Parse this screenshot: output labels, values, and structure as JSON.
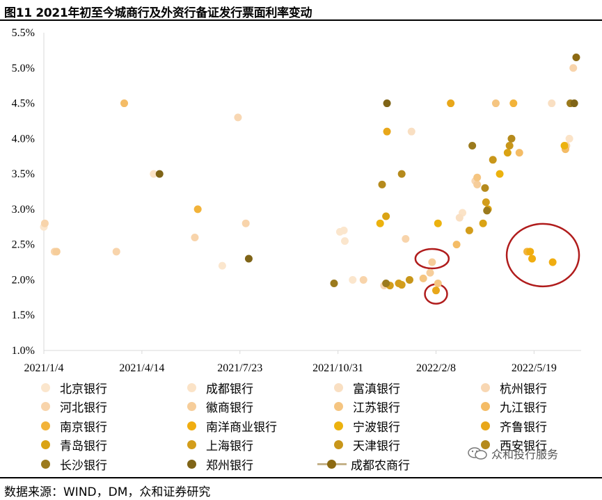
{
  "title": "图11 2021年初至今城商行及外资行备证发行票面利率变动",
  "source": "数据来源：WIND，DM，众和证券研究",
  "watermark": "众和投行服务",
  "chart_data": {
    "type": "scatter",
    "x_ticks": [
      "2021/1/4",
      "2021/4/14",
      "2021/7/23",
      "2021/10/31",
      "2022/2/8",
      "2022/5/19"
    ],
    "y_ticks": [
      "1.0%",
      "1.5%",
      "2.0%",
      "2.5%",
      "3.0%",
      "3.5%",
      "4.0%",
      "4.5%",
      "5.0%",
      "5.5%"
    ],
    "ylim": [
      1.0,
      5.5
    ],
    "xlim": [
      "2021/1/4",
      "2022/7/6"
    ],
    "legend_position": "bottom",
    "series": [
      {
        "name": "北京银行",
        "color": "#fbe6cd",
        "points": [
          [
            "2021/1/4",
            2.75
          ],
          [
            "2021/7/5",
            2.2
          ],
          [
            "2021/11/2",
            2.68
          ],
          [
            "2021/11/6",
            2.7
          ],
          [
            "2021/11/7",
            2.55
          ],
          [
            "2021/11/15",
            2.0
          ]
        ]
      },
      {
        "name": "成都银行",
        "color": "#fbe3c7",
        "points": [
          [
            "2021/4/26",
            3.5
          ],
          [
            "2022/3/7",
            2.95
          ],
          [
            "2022/6/24",
            4.0
          ]
        ]
      },
      {
        "name": "富滇银行",
        "color": "#f9dfc2",
        "points": [
          [
            "2022/1/14",
            4.1
          ],
          [
            "2022/3/4",
            2.88
          ],
          [
            "2022/6/6",
            4.5
          ]
        ]
      },
      {
        "name": "杭州银行",
        "color": "#f8d7b3",
        "points": [
          [
            "2021/7/21",
            4.3
          ],
          [
            "2021/12/17",
            1.92
          ],
          [
            "2022/3/20",
            3.4
          ],
          [
            "2022/6/21",
            3.9
          ]
        ]
      },
      {
        "name": "河北银行",
        "color": "#f8d4ab",
        "points": [
          [
            "2021/1/5",
            2.8
          ],
          [
            "2021/1/15",
            2.4
          ],
          [
            "2021/3/19",
            2.4
          ],
          [
            "2021/6/7",
            2.6
          ],
          [
            "2021/7/29",
            2.8
          ],
          [
            "2021/11/26",
            2.0
          ],
          [
            "2022/1/8",
            2.58
          ],
          [
            "2022/6/28",
            5.0
          ]
        ]
      },
      {
        "name": "徽商银行",
        "color": "#f6cd9a",
        "points": [
          [
            "2021/1/17",
            2.4
          ],
          [
            "2022/2/2",
            2.1
          ],
          [
            "2022/2/4",
            2.25
          ],
          [
            "2022/3/22",
            3.35
          ]
        ]
      },
      {
        "name": "江苏银行",
        "color": "#f5c581",
        "points": [
          [
            "2022/1/26",
            2.02
          ],
          [
            "2022/2/10",
            1.95
          ],
          [
            "2022/3/22",
            3.45
          ],
          [
            "2022/4/10",
            4.5
          ]
        ]
      },
      {
        "name": "九江银行",
        "color": "#f4bc66",
        "points": [
          [
            "2021/3/27",
            4.5
          ],
          [
            "2022/3/1",
            2.5
          ],
          [
            "2022/5/4",
            3.8
          ],
          [
            "2022/6/20",
            3.85
          ]
        ]
      },
      {
        "name": "南京银行",
        "color": "#f2b33a",
        "points": [
          [
            "2021/6/10",
            3.0
          ],
          [
            "2022/4/28",
            4.5
          ],
          [
            "2022/5/12",
            2.4
          ]
        ]
      },
      {
        "name": "南洋商业银行",
        "color": "#f0ad10",
        "points": [
          [
            "2022/5/15",
            2.4
          ],
          [
            "2022/5/17",
            2.3
          ],
          [
            "2022/6/7",
            2.25
          ]
        ]
      },
      {
        "name": "宁波银行",
        "color": "#ecb20e",
        "points": [
          [
            "2021/12/13",
            2.8
          ],
          [
            "2022/2/10",
            2.8
          ],
          [
            "2022/4/14",
            3.5
          ],
          [
            "2022/6/19",
            3.9
          ]
        ]
      },
      {
        "name": "齐鲁银行",
        "color": "#e8a71a",
        "points": [
          [
            "2021/12/20",
            4.1
          ],
          [
            "2022/2/8",
            1.85
          ],
          [
            "2022/2/23",
            4.5
          ]
        ]
      },
      {
        "name": "青岛银行",
        "color": "#daa314",
        "points": [
          [
            "2021/12/19",
            2.9
          ],
          [
            "2022/3/28",
            2.8
          ],
          [
            "2022/4/2",
            3.0
          ],
          [
            "2022/4/22",
            3.8
          ]
        ]
      },
      {
        "name": "上海银行",
        "color": "#d39d1b",
        "points": [
          [
            "2021/12/23",
            1.92
          ],
          [
            "2022/1/1",
            1.95
          ],
          [
            "2022/1/4",
            1.93
          ],
          [
            "2022/3/14",
            2.7
          ],
          [
            "2022/3/31",
            3.1
          ]
        ]
      },
      {
        "name": "天津银行",
        "color": "#c8961a",
        "points": [
          [
            "2022/1/12",
            2.0
          ],
          [
            "2022/4/7",
            3.7
          ],
          [
            "2022/4/24",
            3.9
          ]
        ]
      },
      {
        "name": "西安银行",
        "color": "#b58a1c",
        "points": [
          [
            "2021/12/15",
            3.35
          ],
          [
            "2022/1/4",
            3.5
          ],
          [
            "2022/3/30",
            3.3
          ],
          [
            "2022/4/26",
            4.0
          ]
        ]
      },
      {
        "name": "长沙银行",
        "color": "#9b7a1d",
        "points": [
          [
            "2021/10/27",
            1.95
          ],
          [
            "2021/12/19",
            1.95
          ],
          [
            "2022/3/17",
            3.9
          ],
          [
            "2022/4/1",
            2.98
          ],
          [
            "2022/6/25",
            4.5
          ]
        ]
      },
      {
        "name": "郑州银行",
        "color": "#7f6417",
        "points": [
          [
            "2021/5/2",
            3.5
          ],
          [
            "2021/8/1",
            2.3
          ],
          [
            "2021/12/20",
            4.5
          ],
          [
            "2022/6/29",
            4.5
          ]
        ]
      },
      {
        "name": "成都农商行",
        "color": "#8c6a12",
        "line_color": "#c4b28a",
        "points": [
          [
            "2022/7/1",
            5.15
          ]
        ]
      }
    ],
    "annotations": [
      {
        "type": "ellipse",
        "color": "#b01c1c",
        "center": [
          "2022/2/4",
          2.3
        ]
      },
      {
        "type": "ellipse",
        "color": "#b01c1c",
        "center": [
          "2022/2/8",
          1.8
        ]
      },
      {
        "type": "ellipse",
        "color": "#b01c1c",
        "center": [
          "2022/5/28",
          2.35
        ]
      }
    ]
  }
}
